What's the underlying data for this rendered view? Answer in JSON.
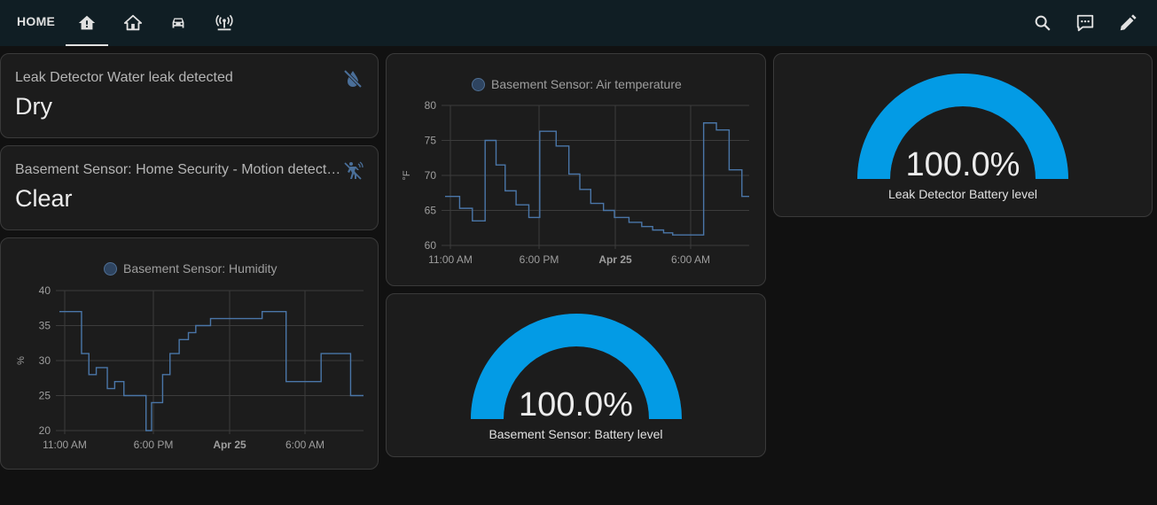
{
  "header": {
    "title": "HOME",
    "tabs": [
      {
        "icon": "home-alert-icon",
        "active": true
      },
      {
        "icon": "home-icon",
        "active": false
      },
      {
        "icon": "car-icon",
        "active": false
      },
      {
        "icon": "access-point-network-icon",
        "active": false
      }
    ],
    "actions": [
      "search-icon",
      "assist-icon",
      "edit-pencil-icon"
    ]
  },
  "cards": {
    "leak": {
      "name": "Leak Detector Water leak detected",
      "state": "Dry",
      "icon": "water-off-icon"
    },
    "motion": {
      "name": "Basement Sensor: Home Security - Motion detection",
      "state": "Clear",
      "icon": "motion-sensor-off-icon"
    },
    "humidity": {
      "legend": "Basement Sensor: Humidity"
    },
    "temperature": {
      "legend": "Basement Sensor: Air temperature"
    },
    "basement_battery": {
      "value": "100.0%",
      "label": "Basement Sensor: Battery level"
    },
    "leak_battery": {
      "value": "100.0%",
      "label": "Leak Detector Battery level"
    }
  },
  "colors": {
    "line": "#4a76a8",
    "gauge": "#039be5",
    "grid": "#3c3c3c"
  },
  "chart_data": [
    {
      "type": "line",
      "step": true,
      "series": [
        {
          "name": "Basement Sensor: Humidity",
          "x": [
            0,
            1.2,
            1.6,
            2.0,
            2.6,
            3.0,
            3.5,
            4.0,
            4.7,
            5.0,
            5.6,
            6.0,
            6.5,
            7.0,
            7.4,
            7.8,
            8.2,
            8.5,
            9.0,
            10.0,
            11.0,
            11.8,
            12.3,
            12.8,
            14.2,
            15.0,
            15.8,
            16.2,
            16.5
          ],
          "values": [
            37,
            31,
            28,
            29,
            26,
            27,
            25,
            25,
            20,
            24,
            28,
            31,
            33,
            34,
            35,
            35,
            36,
            36,
            36,
            36,
            37,
            37,
            27,
            27,
            31,
            31,
            25,
            25,
            25
          ]
        }
      ],
      "ylabel": "%",
      "ylim": [
        20,
        40
      ],
      "yticks": [
        20,
        25,
        30,
        35,
        40
      ],
      "xtick_labels": [
        "11:00 AM",
        "6:00 PM",
        "Apr 25",
        "6:00 AM"
      ],
      "grid": true,
      "legend": "top-center"
    },
    {
      "type": "line",
      "step": true,
      "series": [
        {
          "name": "Basement Sensor: Air temperature",
          "x": [
            0,
            0.8,
            1.5,
            2.2,
            2.8,
            3.3,
            3.9,
            4.6,
            5.2,
            6.1,
            6.8,
            7.4,
            8.0,
            8.7,
            9.3,
            10.1,
            10.8,
            11.4,
            12.0,
            12.5,
            13.1,
            14.2,
            14.9,
            15.6,
            16.3,
            16.7
          ],
          "values": [
            67,
            65.3,
            63.5,
            75,
            71.5,
            67.8,
            65.8,
            64,
            76.3,
            74.2,
            70.2,
            68,
            66,
            65,
            64,
            63.3,
            62.7,
            62.2,
            61.8,
            61.5,
            61.5,
            77.5,
            76.5,
            70.8,
            67,
            67
          ]
        }
      ],
      "ylabel": "°F",
      "ylim": [
        60,
        80
      ],
      "yticks": [
        60,
        65,
        70,
        75,
        80
      ],
      "xtick_labels": [
        "11:00 AM",
        "6:00 PM",
        "Apr 25",
        "6:00 AM"
      ],
      "grid": true,
      "legend": "top-center"
    },
    {
      "type": "gauge",
      "value": 100.0,
      "range": [
        0,
        100
      ],
      "label": "Basement Sensor: Battery level"
    },
    {
      "type": "gauge",
      "value": 100.0,
      "range": [
        0,
        100
      ],
      "label": "Leak Detector Battery level"
    }
  ]
}
